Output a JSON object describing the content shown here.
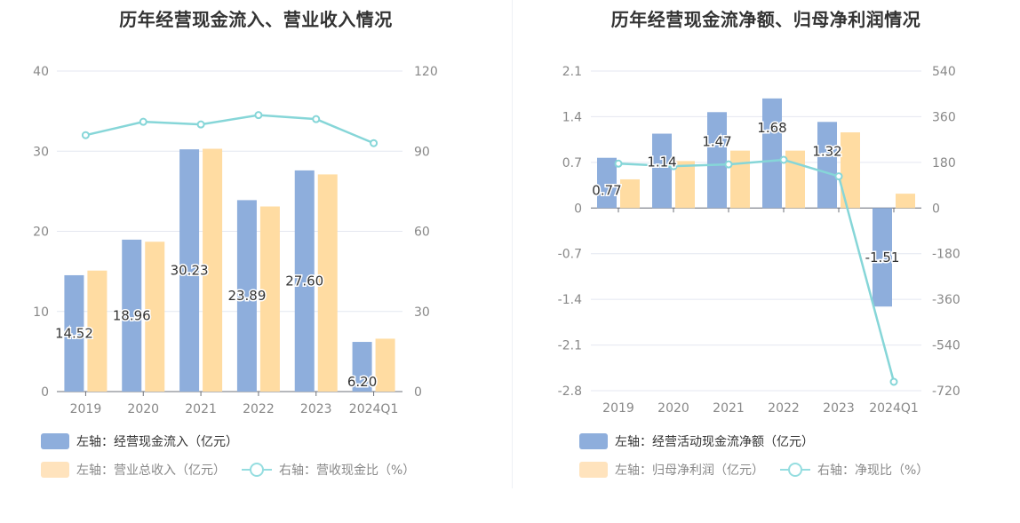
{
  "colors": {
    "bar_primary": "#8eaedc",
    "bar_secondary": "#ffdca2",
    "line": "#86d6d8",
    "grid": "#e4e7f0",
    "axis_text": "#888888"
  },
  "chart_data": [
    {
      "type": "bar",
      "title": "历年经营现金流入、营业收入情况",
      "categories": [
        "2019",
        "2020",
        "2021",
        "2022",
        "2023",
        "2024Q1"
      ],
      "left_axis": {
        "ylim": [
          0,
          40
        ],
        "ticks": [
          "0",
          "10",
          "20",
          "30",
          "40"
        ]
      },
      "right_axis": {
        "ylim": [
          0,
          120
        ],
        "ticks": [
          "0",
          "30",
          "60",
          "90",
          "120"
        ]
      },
      "series": [
        {
          "name": "左轴：经营现金流入（亿元）",
          "axis": "left",
          "kind": "bar",
          "values": [
            14.52,
            18.96,
            30.23,
            23.89,
            27.6,
            6.2
          ],
          "labels": [
            "14.52",
            "18.96",
            "30.23",
            "23.89",
            "27.60",
            "6.20"
          ]
        },
        {
          "name": "左轴：营业总收入（亿元）",
          "axis": "left",
          "kind": "bar",
          "values": [
            15.1,
            18.7,
            30.3,
            23.1,
            27.1,
            6.6
          ]
        },
        {
          "name": "右轴：营收现金比（%）",
          "axis": "right",
          "kind": "line",
          "values": [
            96,
            101,
            100,
            103.5,
            102,
            93
          ]
        }
      ]
    },
    {
      "type": "bar",
      "title": "历年经营现金流净额、归母净利润情况",
      "categories": [
        "2019",
        "2020",
        "2021",
        "2022",
        "2023",
        "2024Q1"
      ],
      "left_axis": {
        "ylim": [
          -2.8,
          2.1
        ],
        "ticks": [
          "-2.8",
          "-2.1",
          "-1.4",
          "-0.7",
          "0",
          "0.7",
          "1.4",
          "2.1"
        ]
      },
      "right_axis": {
        "ylim": [
          -720,
          540
        ],
        "ticks": [
          "-720",
          "-540",
          "-360",
          "-180",
          "0",
          "180",
          "360",
          "540"
        ]
      },
      "series": [
        {
          "name": "左轴：经营活动现金流净额（亿元）",
          "axis": "left",
          "kind": "bar",
          "values": [
            0.77,
            1.14,
            1.47,
            1.68,
            1.32,
            -1.51
          ],
          "labels": [
            "0.77",
            "1.14",
            "1.47",
            "1.68",
            "1.32",
            "-1.51"
          ]
        },
        {
          "name": "左轴：归母净利润（亿元）",
          "axis": "left",
          "kind": "bar",
          "values": [
            0.44,
            0.72,
            0.88,
            0.88,
            1.16,
            0.22
          ]
        },
        {
          "name": "右轴：净现比（%）",
          "axis": "right",
          "kind": "line",
          "values": [
            175,
            165,
            172,
            190,
            125,
            -685
          ]
        }
      ]
    }
  ]
}
